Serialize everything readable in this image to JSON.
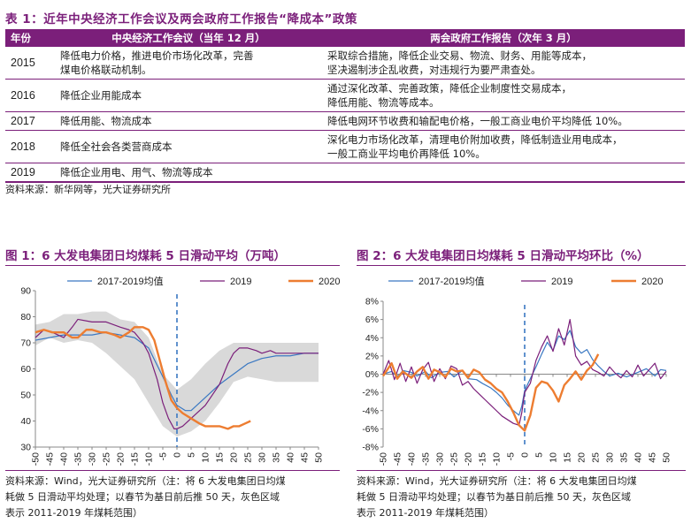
{
  "table": {
    "title": "表 1：近年中央经济工作会议及两会政府工作报告“降成本”政策",
    "headers": [
      "年份",
      "中央经济工作会议（当年 12 月）",
      "两会政府工作报告（次年 3 月）"
    ],
    "rows": [
      {
        "year": "2015",
        "ceconf": [
          "降低电力价格，推进电价市场化改革，完善",
          "煤电价格联动机制。"
        ],
        "report": [
          "采取综合措施，降低企业交易、物流、财务、用能等成本，",
          "坚决遏制涉企乱收费，对违规行为要严肃查处。"
        ]
      },
      {
        "year": "2016",
        "ceconf": [
          "降低企业用能成本"
        ],
        "report": [
          "通过深化改革、完善政策，降低企业制度性交易成本，",
          "降低用能、物流等成本。"
        ]
      },
      {
        "year": "2017",
        "ceconf": [
          "降低用能、物流成本"
        ],
        "report": [
          "降低电网环节收费和输配电价格，一般工商业电价平均降低 10%。"
        ]
      },
      {
        "year": "2018",
        "ceconf": [
          "降低全社会各类营商成本"
        ],
        "report": [
          "深化电力市场化改革，清理电价附加收费，降低制造业用电成本，",
          "一般工商业平均电价再降低 10%。"
        ]
      },
      {
        "year": "2019",
        "ceconf": [
          "降低企业用电、用气、物流等成本"
        ],
        "report": [
          ""
        ]
      }
    ],
    "source": "资料来源：新华网等，光大证券研究所"
  },
  "chart_data": [
    {
      "type": "line",
      "title": "图 1：6 大发电集团日均煤耗 5 日滑动平均（万吨）",
      "xlabel": "",
      "ylabel": "",
      "xlim": [
        -50,
        50
      ],
      "ylim": [
        30,
        90
      ],
      "yticks": [
        30,
        40,
        50,
        60,
        70,
        80,
        90
      ],
      "xticks": [
        -50,
        -45,
        -40,
        -35,
        -30,
        -25,
        -20,
        -15,
        -10,
        -5,
        0,
        5,
        10,
        15,
        20,
        25,
        30,
        35,
        40,
        45,
        50
      ],
      "vline": 0,
      "band": {
        "x": [
          -50,
          -45,
          -40,
          -35,
          -30,
          -25,
          -20,
          -15,
          -10,
          -5,
          0,
          5,
          10,
          15,
          20,
          25,
          30,
          35,
          40,
          45,
          50
        ],
        "low": [
          69,
          72,
          70,
          71,
          70,
          66,
          61,
          56,
          47,
          38,
          34,
          36,
          40,
          47,
          55,
          57,
          56,
          55,
          55,
          55,
          55
        ],
        "high": [
          77,
          78,
          81,
          81,
          82,
          82,
          79,
          78,
          72,
          58,
          52,
          56,
          62,
          67,
          70,
          70,
          70,
          70,
          70,
          70,
          70
        ]
      },
      "series": [
        {
          "name": "2017-2019均值",
          "color": "#3a78c2",
          "width": 1.2,
          "x": [
            -50,
            -45,
            -40,
            -35,
            -30,
            -25,
            -20,
            -15,
            -10,
            -5,
            -2,
            0,
            3,
            5,
            10,
            15,
            20,
            25,
            30,
            35,
            40,
            45,
            50
          ],
          "y": [
            71,
            72,
            73,
            73,
            73,
            74,
            73,
            72,
            68,
            57,
            50,
            46,
            44,
            44,
            49,
            54,
            58,
            62,
            64,
            65,
            65,
            66,
            66
          ]
        },
        {
          "name": "2019",
          "color": "#7b1f7a",
          "width": 1.2,
          "x": [
            -50,
            -47,
            -44,
            -40,
            -37,
            -35,
            -30,
            -25,
            -20,
            -17,
            -15,
            -12,
            -10,
            -7,
            -5,
            -3,
            -1,
            0,
            2,
            5,
            10,
            15,
            18,
            20,
            22,
            25,
            28,
            30,
            33,
            35,
            40,
            45,
            50
          ],
          "y": [
            72,
            75,
            74,
            72,
            76,
            79,
            78,
            78,
            76,
            75,
            74,
            70,
            66,
            56,
            47,
            41,
            37,
            37,
            38,
            41,
            46,
            54,
            62,
            66,
            68,
            68,
            67,
            66,
            67,
            66,
            66,
            66,
            66
          ]
        },
        {
          "name": "2020",
          "color": "#ed7d31",
          "width": 2.4,
          "x": [
            -50,
            -47,
            -44,
            -40,
            -37,
            -35,
            -32,
            -30,
            -27,
            -25,
            -22,
            -20,
            -17,
            -15,
            -12,
            -10,
            -8,
            -6,
            -4,
            -2,
            0,
            2,
            5,
            8,
            10,
            13,
            15,
            18,
            20,
            22,
            24,
            26
          ],
          "y": [
            74,
            75,
            74,
            74,
            72,
            72,
            75,
            75,
            74,
            74,
            73,
            72,
            74,
            76,
            76,
            75,
            71,
            63,
            55,
            48,
            45,
            43,
            41,
            39,
            38,
            38,
            38,
            37,
            38,
            38,
            39,
            40
          ]
        }
      ],
      "legend": "top",
      "source": [
        "资料来源：Wind，光大证券研究所（注：将 6 大发电集团日均煤",
        "耗做 5 日滑动平均处理；以春节为基日前后推 50 天，灰色区域",
        "表示 2011-2019 年煤耗范围）"
      ]
    },
    {
      "type": "line",
      "title": "图 2：6 大发电集团日均煤耗 5 日滑动平均环比（%）",
      "xlabel": "",
      "ylabel": "",
      "xlim": [
        -50,
        50
      ],
      "ylim": [
        -8,
        8
      ],
      "yticks": [
        -8,
        -6,
        -4,
        -2,
        0,
        2,
        4,
        6,
        8
      ],
      "ytick_labels": [
        "-8%",
        "-6%",
        "-4%",
        "-2%",
        "0%",
        "2%",
        "4%",
        "6%",
        "8%"
      ],
      "xticks": [
        -50,
        -45,
        -40,
        -35,
        -30,
        -25,
        -20,
        -15,
        -10,
        -5,
        0,
        5,
        10,
        15,
        20,
        25,
        30,
        35,
        40,
        45,
        50
      ],
      "vline": 0,
      "series": [
        {
          "name": "2017-2019均值",
          "color": "#3a78c2",
          "width": 1.2,
          "x": [
            -50,
            -47,
            -45,
            -43,
            -40,
            -38,
            -35,
            -33,
            -30,
            -27,
            -25,
            -22,
            -20,
            -17,
            -15,
            -12,
            -10,
            -8,
            -6,
            -4,
            -2,
            -1,
            0,
            2,
            4,
            6,
            8,
            10,
            12,
            14,
            16,
            18,
            20,
            22,
            24,
            26,
            28,
            30,
            33,
            36,
            40,
            43,
            46,
            48,
            50
          ],
          "y": [
            0,
            0.3,
            -0.3,
            0.4,
            0.2,
            -0.2,
            0.3,
            -0.4,
            0.2,
            0.3,
            -0.3,
            0.4,
            -0.5,
            -0.6,
            -1.0,
            -1.5,
            -2.0,
            -2.6,
            -3.4,
            -4.0,
            -4.5,
            -3.5,
            -1.8,
            -0.5,
            0.8,
            2.2,
            3.5,
            2.6,
            4.2,
            3.8,
            4.8,
            3.0,
            2.3,
            2.7,
            1.6,
            0.9,
            0.3,
            -0.2,
            0.1,
            -0.3,
            0.2,
            0.6,
            -0.2,
            0.5,
            0.4
          ]
        },
        {
          "name": "2019",
          "color": "#7b1f7a",
          "width": 1.2,
          "x": [
            -50,
            -48,
            -46,
            -44,
            -42,
            -40,
            -38,
            -36,
            -34,
            -32,
            -30,
            -28,
            -26,
            -24,
            -22,
            -20,
            -18,
            -16,
            -14,
            -12,
            -10,
            -8,
            -6,
            -4,
            -2,
            -1,
            0,
            2,
            4,
            6,
            8,
            10,
            12,
            14,
            16,
            18,
            20,
            22,
            24,
            26,
            28,
            30,
            32,
            34,
            36,
            38,
            40,
            42,
            44,
            46,
            48,
            50
          ],
          "y": [
            0,
            1.5,
            -0.6,
            1.2,
            -0.8,
            0.8,
            -1.0,
            0.5,
            1.3,
            -0.8,
            0.6,
            -0.5,
            0.9,
            0.6,
            -1.2,
            -0.8,
            -1.6,
            -2.2,
            -2.8,
            -3.4,
            -4.0,
            -4.6,
            -5.0,
            -5.4,
            -5.6,
            -4.2,
            -2.0,
            -1.0,
            1.5,
            3.0,
            4.2,
            2.5,
            5.0,
            3.2,
            6.0,
            2.0,
            1.0,
            1.4,
            0.5,
            0.2,
            -0.2,
            0.8,
            0.1,
            -0.4,
            0.4,
            -0.3,
            1.0,
            -0.2,
            0.5,
            1.2,
            -0.5,
            0.3
          ]
        },
        {
          "name": "2020",
          "color": "#ed7d31",
          "width": 2.4,
          "x": [
            -50,
            -47,
            -45,
            -43,
            -40,
            -38,
            -36,
            -34,
            -32,
            -30,
            -28,
            -26,
            -24,
            -22,
            -20,
            -18,
            -16,
            -14,
            -12,
            -10,
            -8,
            -6,
            -4,
            -2,
            0,
            2,
            4,
            6,
            8,
            10,
            12,
            14,
            16,
            18,
            20,
            22,
            24,
            26
          ],
          "y": [
            -0.2,
            1.2,
            -0.5,
            0.3,
            -0.4,
            0.3,
            0.8,
            -0.5,
            0.5,
            0.2,
            -0.3,
            0.6,
            0.3,
            0.4,
            -0.4,
            0.5,
            0.2,
            -0.6,
            -1.0,
            -1.6,
            -2.0,
            -3.0,
            -4.2,
            -5.6,
            -6.2,
            -4.5,
            -1.5,
            -0.8,
            -1.0,
            -1.8,
            -3.0,
            -1.2,
            -0.5,
            0.3,
            -0.6,
            0.4,
            1.0,
            2.2
          ]
        }
      ],
      "legend": "top",
      "source": [
        "资料来源：Wind，光大证券研究所（注：将 6 大发电集团日均煤",
        "耗做 5 日滑动平均处理；以春节为基日前后推 50 天，灰色区域",
        "表示 2011-2019 年煤耗范围）"
      ]
    }
  ]
}
